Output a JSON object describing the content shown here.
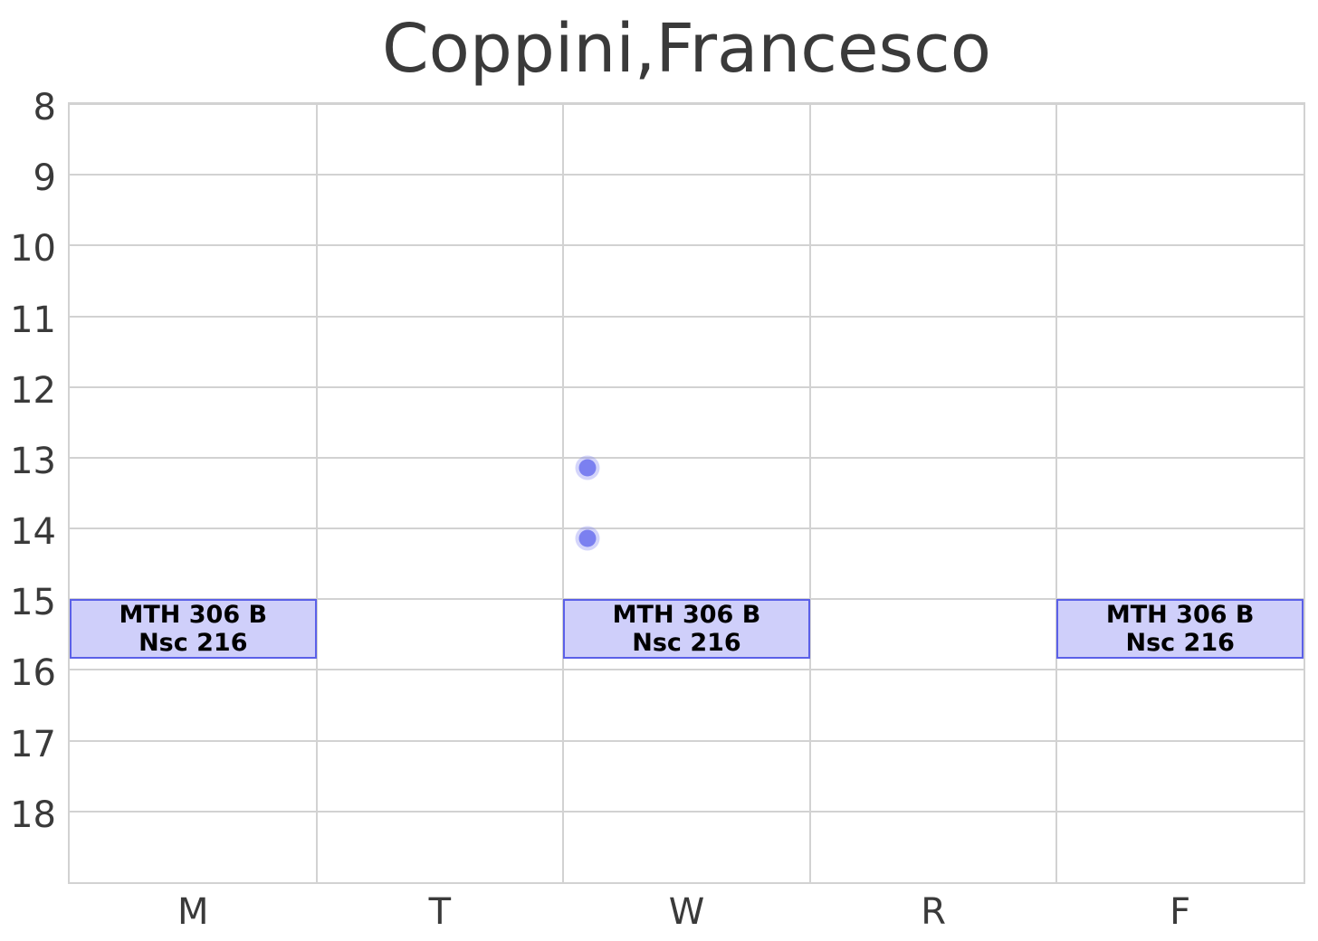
{
  "title": "Coppini,Francesco",
  "colors": {
    "text": "#3a3a3a",
    "grid": "#d2d2d2",
    "event_fill": "#cfcffa",
    "event_border": "#5b60e8",
    "event_text": "#000000",
    "dot_fill": "#7b80f0",
    "dot_halo": "rgba(123,128,240,0.33)",
    "background": "#ffffff"
  },
  "chart_data": {
    "type": "schedule-grid",
    "title": "Coppini,Francesco",
    "x_categories": [
      "M",
      "T",
      "W",
      "R",
      "F"
    ],
    "y_ticks": [
      8,
      9,
      10,
      11,
      12,
      13,
      14,
      15,
      16,
      17,
      18
    ],
    "y_range": [
      8,
      19
    ],
    "y_axis_inverted": true,
    "grid": true,
    "legend": "none",
    "events": [
      {
        "day": "M",
        "start_hour": 15.0,
        "end_hour": 15.84,
        "label_line1": "MTH 306 B",
        "label_line2": "Nsc 216"
      },
      {
        "day": "W",
        "start_hour": 15.0,
        "end_hour": 15.84,
        "label_line1": "MTH 306 B",
        "label_line2": "Nsc 216"
      },
      {
        "day": "F",
        "start_hour": 15.0,
        "end_hour": 15.84,
        "label_line1": "MTH 306 B",
        "label_line2": "Nsc 216"
      }
    ],
    "markers": [
      {
        "day": "W",
        "hour": 13.14,
        "x_fraction": 0.1
      },
      {
        "day": "W",
        "hour": 14.14,
        "x_fraction": 0.1
      }
    ]
  }
}
